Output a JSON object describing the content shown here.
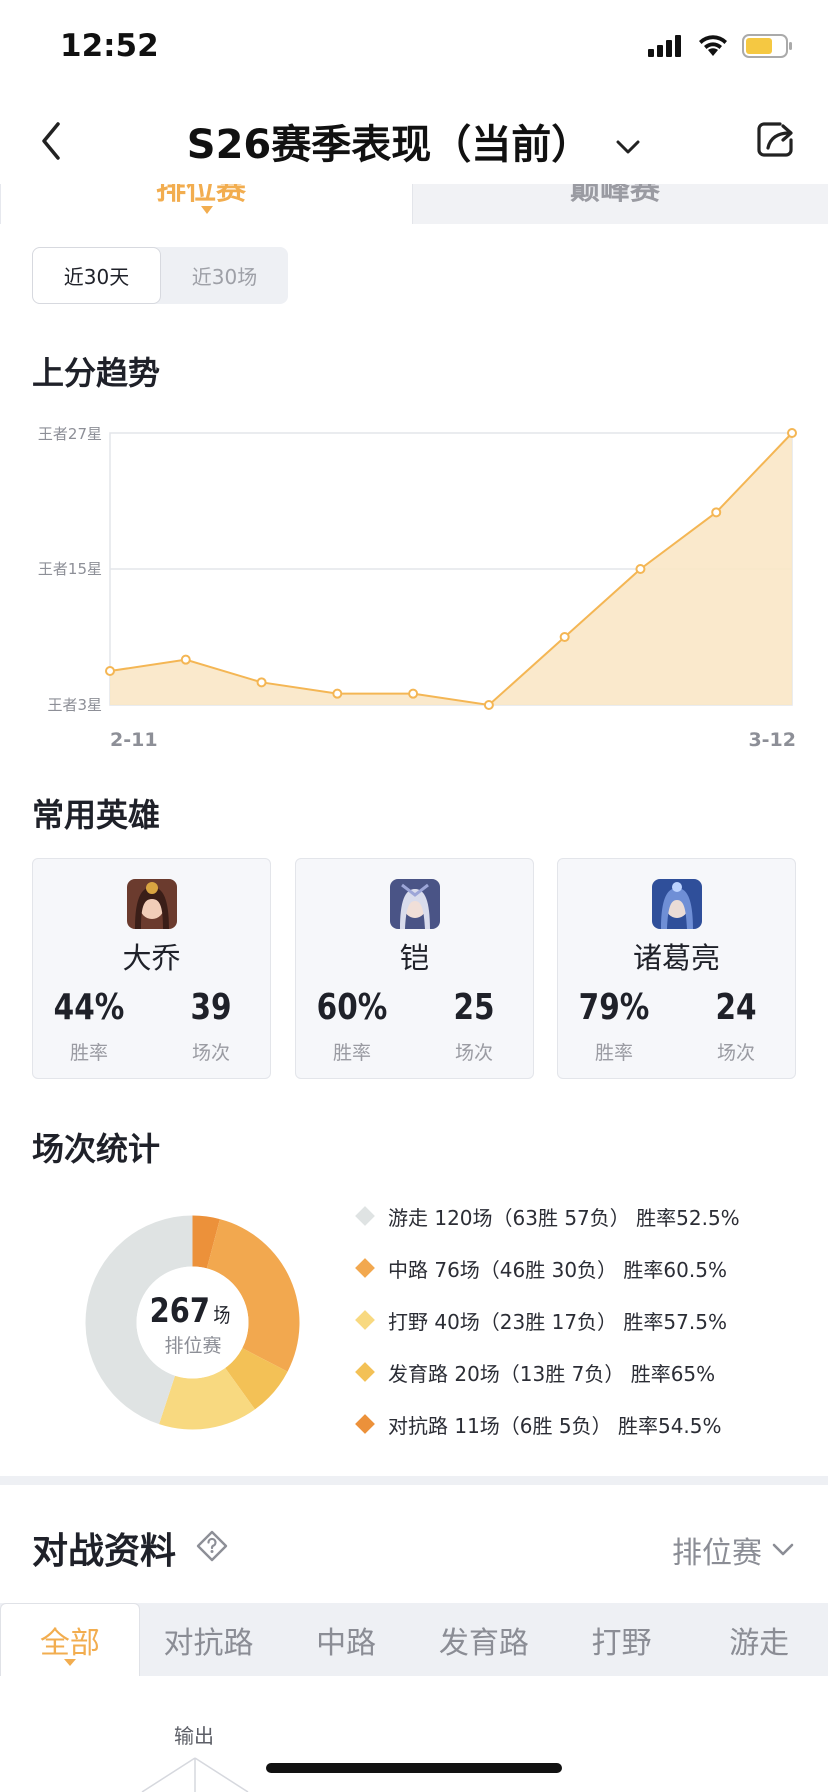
{
  "status": {
    "time": "12:52"
  },
  "nav": {
    "title": "S26赛季表现（当前）"
  },
  "mode_tabs": [
    "排位赛",
    "巅峰赛"
  ],
  "period": {
    "options": [
      "近30天",
      "近30场"
    ],
    "selected": "近30天"
  },
  "trend": {
    "title": "上分趋势",
    "y_labels": [
      "王者27星",
      "王者15星",
      "王者3星"
    ],
    "x_start": "2-11",
    "x_end": "3-12"
  },
  "chart_data": [
    {
      "type": "area",
      "title": "上分趋势",
      "x_labels": [
        "2-11",
        "3-12"
      ],
      "y_tick_labels": [
        "王者3星",
        "王者15星",
        "王者27星"
      ],
      "ylim": [
        3,
        27
      ],
      "values": [
        6,
        7,
        5,
        4,
        4,
        3,
        9,
        15,
        20,
        27
      ],
      "grid": true
    },
    {
      "type": "pie",
      "center_value": "267",
      "center_unit": "场",
      "center_label": "排位赛",
      "series": [
        {
          "name": "游走",
          "value": 120
        },
        {
          "name": "中路",
          "value": 76
        },
        {
          "name": "打野",
          "value": 40
        },
        {
          "name": "发育路",
          "value": 20
        },
        {
          "name": "对抗路",
          "value": 11
        }
      ]
    }
  ],
  "heroes": {
    "title": "常用英雄",
    "items": [
      {
        "name": "大乔",
        "winrate": "44%",
        "games": "39",
        "winrate_label": "胜率",
        "games_label": "场次"
      },
      {
        "name": "铠",
        "winrate": "60%",
        "games": "25",
        "winrate_label": "胜率",
        "games_label": "场次"
      },
      {
        "name": "诸葛亮",
        "winrate": "79%",
        "games": "24",
        "winrate_label": "胜率",
        "games_label": "场次"
      }
    ]
  },
  "stats": {
    "title": "场次统计",
    "total": "267",
    "total_unit": "场",
    "total_label": "排位赛",
    "legend": [
      {
        "text": "游走 120场（63胜 57负） 胜率52.5%",
        "color": "#dfe3e3"
      },
      {
        "text": "中路 76场（46胜 30负） 胜率60.5%",
        "color": "#f2a84f"
      },
      {
        "text": "打野 40场（23胜 17负） 胜率57.5%",
        "color": "#f8d980"
      },
      {
        "text": "发育路 20场（13胜 7负） 胜率65%",
        "color": "#f3c156"
      },
      {
        "text": "对抗路 11场（6胜 5负） 胜率54.5%",
        "color": "#ec913a"
      }
    ]
  },
  "battle": {
    "title": "对战资料",
    "filter": "排位赛",
    "tabs": [
      "全部",
      "对抗路",
      "中路",
      "发育路",
      "打野",
      "游走"
    ],
    "radar_label": "输出"
  }
}
